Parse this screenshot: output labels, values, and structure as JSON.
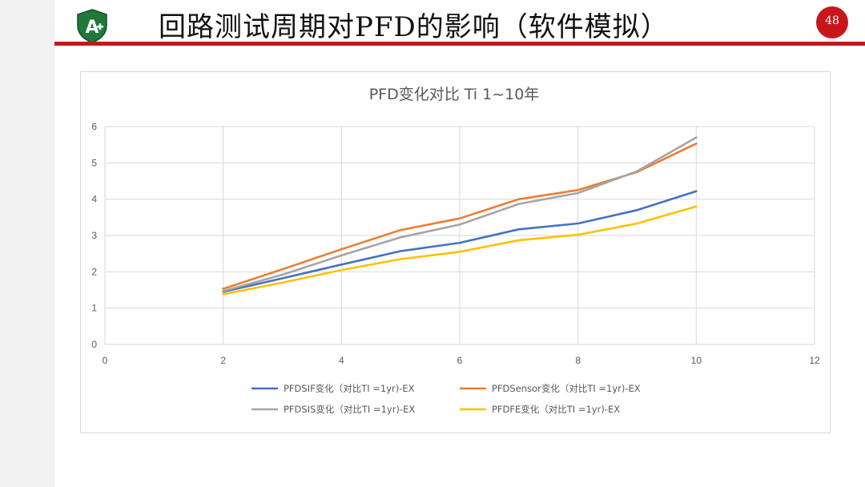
{
  "slide": {
    "title": "回路测试周期对PFD的影响（软件模拟）",
    "page_number": "48",
    "logo_letter": "A",
    "accent_color": "#c8161d",
    "logo_color": "#1f7a3a"
  },
  "chart_data": {
    "type": "line",
    "title": "PFD变化对比 Ti 1~10年",
    "xlabel": "",
    "ylabel": "",
    "xlim": [
      0,
      12
    ],
    "ylim": [
      0,
      6
    ],
    "xticks": [
      0,
      2,
      4,
      6,
      8,
      10,
      12
    ],
    "yticks": [
      0,
      1,
      2,
      3,
      4,
      5,
      6
    ],
    "x": [
      2,
      3,
      4,
      5,
      6,
      7,
      8,
      9,
      10
    ],
    "grid": true,
    "legend_position": "bottom",
    "series": [
      {
        "name": "PFDSIF变化（对比TI =1yr)-EX",
        "color": "#4472c4",
        "values": [
          1.45,
          1.82,
          2.2,
          2.57,
          2.8,
          3.17,
          3.33,
          3.7,
          4.22
        ]
      },
      {
        "name": "PFDSensor变化（对比TI =1yr)-EX",
        "color": "#ed7d31",
        "values": [
          1.53,
          2.07,
          2.62,
          3.15,
          3.47,
          4.0,
          4.25,
          4.75,
          5.53
        ]
      },
      {
        "name": "PFDSIS变化（对比TI =1yr)-EX",
        "color": "#a5a5a5",
        "values": [
          1.47,
          1.92,
          2.45,
          2.95,
          3.3,
          3.87,
          4.17,
          4.77,
          5.7
        ]
      },
      {
        "name": "PFDFE变化（对比TI =1yr)-EX",
        "color": "#ffc000",
        "values": [
          1.38,
          1.7,
          2.05,
          2.35,
          2.55,
          2.87,
          3.02,
          3.33,
          3.8
        ]
      }
    ]
  }
}
